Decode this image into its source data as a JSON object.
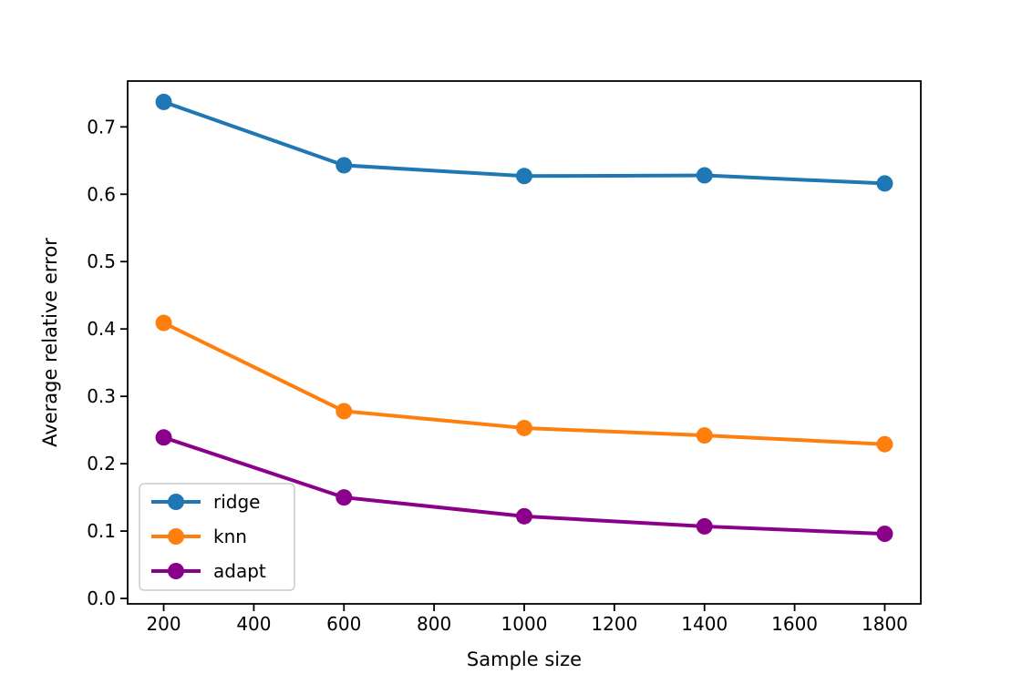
{
  "chart_data": {
    "type": "line",
    "title": "",
    "xlabel": "Sample size",
    "ylabel": "Average relative error",
    "x": [
      200,
      600,
      1000,
      1400,
      1800
    ],
    "series": [
      {
        "name": "ridge",
        "color": "#1f77b4",
        "values": [
          0.737,
          0.643,
          0.627,
          0.628,
          0.616
        ]
      },
      {
        "name": "knn",
        "color": "#ff7f0e",
        "values": [
          0.409,
          0.278,
          0.253,
          0.242,
          0.229
        ]
      },
      {
        "name": "adapt",
        "color": "#8b008b",
        "values": [
          0.239,
          0.15,
          0.122,
          0.107,
          0.096
        ]
      }
    ],
    "xticks": [
      200,
      400,
      600,
      800,
      1000,
      1200,
      1400,
      1600,
      1800
    ],
    "yticks": [
      0.0,
      0.1,
      0.2,
      0.3,
      0.4,
      0.5,
      0.6,
      0.7
    ],
    "xlim": [
      120,
      1880
    ],
    "ylim": [
      -0.008,
      0.768
    ],
    "grid": false,
    "legend_position": "lower left",
    "marker": "o",
    "axis_color": "#000000",
    "legend_border_color": "#cccccc",
    "background_color": "#ffffff"
  }
}
